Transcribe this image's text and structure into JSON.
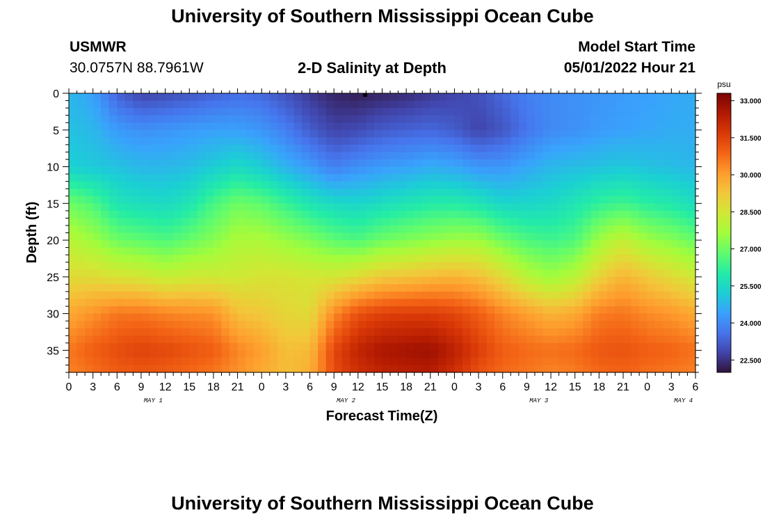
{
  "page": {
    "title": "University of Southern Mississippi Ocean Cube",
    "station": "USMWR",
    "coordinates": "30.0757N  88.7961W",
    "subtitle": "2-D Salinity at Depth",
    "model_start_label": "Model Start Time",
    "model_start_value": "05/01/2022 Hour 21",
    "bottom_title": "University of Southern Mississippi Ocean Cube"
  },
  "chart_data": {
    "type": "heatmap",
    "title": "2-D Salinity at Depth",
    "xlabel": "Forecast Time(Z)",
    "ylabel": "Depth (ft)",
    "x_tick_labels": [
      "0",
      "3",
      "6",
      "9",
      "12",
      "15",
      "18",
      "21",
      "0",
      "3",
      "6",
      "9",
      "12",
      "15",
      "18",
      "21",
      "0",
      "3",
      "6",
      "9",
      "12",
      "15",
      "18",
      "21",
      "0",
      "3",
      "6"
    ],
    "day_labels": [
      {
        "label": "MAY 1",
        "tick_index": 3.5
      },
      {
        "label": "MAY 2",
        "tick_index": 11.5
      },
      {
        "label": "MAY 3",
        "tick_index": 19.5
      },
      {
        "label": "MAY 4",
        "tick_index": 25.5
      }
    ],
    "y_ticks": [
      0,
      5,
      10,
      15,
      20,
      25,
      30,
      35
    ],
    "ylim": [
      0,
      38
    ],
    "y_inverted": true,
    "colorbar": {
      "unit": "psu",
      "ticks": [
        "22.500",
        "24.000",
        "25.500",
        "27.000",
        "28.500",
        "30.000",
        "31.500",
        "33.000"
      ],
      "range": [
        22.0,
        33.3
      ]
    },
    "profile_depths_ft": [
      0,
      5,
      10,
      15,
      20,
      25,
      30,
      35,
      38
    ],
    "profiles": [
      {
        "hour": 0,
        "salinity": [
          24.8,
          25.0,
          25.3,
          27.0,
          28.0,
          28.8,
          29.8,
          30.6,
          30.4
        ]
      },
      {
        "hour": 3,
        "salinity": [
          24.4,
          24.8,
          25.1,
          26.6,
          27.6,
          28.8,
          30.2,
          31.0,
          30.7
        ]
      },
      {
        "hour": 6,
        "salinity": [
          23.3,
          24.3,
          25.0,
          25.8,
          27.0,
          28.6,
          30.6,
          31.3,
          31.0
        ]
      },
      {
        "hour": 9,
        "salinity": [
          22.8,
          24.1,
          24.8,
          25.6,
          26.8,
          28.5,
          30.6,
          31.5,
          31.1
        ]
      },
      {
        "hour": 12,
        "salinity": [
          22.9,
          24.2,
          24.8,
          25.5,
          26.6,
          28.2,
          30.4,
          31.4,
          31.0
        ]
      },
      {
        "hour": 15,
        "salinity": [
          23.1,
          24.3,
          24.9,
          25.8,
          26.9,
          28.4,
          30.3,
          31.2,
          30.8
        ]
      },
      {
        "hour": 18,
        "salinity": [
          23.3,
          24.4,
          25.2,
          26.5,
          27.3,
          28.4,
          30.2,
          31.0,
          30.6
        ]
      },
      {
        "hour": 21,
        "salinity": [
          23.5,
          24.4,
          25.5,
          27.0,
          27.8,
          28.4,
          29.4,
          30.4,
          30.2
        ]
      },
      {
        "hour": 24,
        "salinity": [
          23.4,
          24.2,
          25.2,
          26.8,
          27.8,
          28.6,
          29.2,
          30.0,
          29.8
        ]
      },
      {
        "hour": 27,
        "salinity": [
          23.0,
          23.8,
          24.7,
          26.3,
          27.5,
          28.6,
          28.9,
          29.4,
          29.4
        ]
      },
      {
        "hour": 30,
        "salinity": [
          22.6,
          23.2,
          24.3,
          25.8,
          27.2,
          28.5,
          28.8,
          29.5,
          29.7
        ]
      },
      {
        "hour": 33,
        "salinity": [
          22.3,
          22.8,
          23.8,
          25.5,
          26.8,
          28.5,
          30.3,
          31.4,
          31.3
        ]
      },
      {
        "hour": 36,
        "salinity": [
          22.2,
          22.9,
          24.1,
          25.4,
          26.6,
          28.8,
          31.2,
          32.2,
          31.9
        ]
      },
      {
        "hour": 39,
        "salinity": [
          22.3,
          23.2,
          24.3,
          25.6,
          27.0,
          29.2,
          31.5,
          32.6,
          32.2
        ]
      },
      {
        "hour": 42,
        "salinity": [
          22.4,
          23.3,
          24.4,
          25.8,
          27.2,
          29.3,
          31.6,
          32.7,
          32.3
        ]
      },
      {
        "hour": 45,
        "salinity": [
          22.6,
          23.4,
          24.6,
          26.0,
          27.4,
          29.5,
          31.6,
          32.8,
          32.4
        ]
      },
      {
        "hour": 48,
        "salinity": [
          22.8,
          23.2,
          24.5,
          26.0,
          27.6,
          29.6,
          31.4,
          32.3,
          31.9
        ]
      },
      {
        "hour": 51,
        "salinity": [
          23.0,
          22.8,
          24.2,
          25.8,
          27.6,
          29.4,
          31.0,
          31.6,
          31.2
        ]
      },
      {
        "hour": 54,
        "salinity": [
          23.4,
          23.1,
          24.2,
          25.4,
          27.0,
          28.8,
          30.4,
          31.0,
          30.8
        ]
      },
      {
        "hour": 57,
        "salinity": [
          23.8,
          23.6,
          24.5,
          25.4,
          26.6,
          28.0,
          30.0,
          30.8,
          30.6
        ]
      },
      {
        "hour": 60,
        "salinity": [
          24.0,
          24.0,
          24.8,
          25.5,
          26.4,
          27.6,
          29.6,
          30.7,
          30.4
        ]
      },
      {
        "hour": 63,
        "salinity": [
          24.1,
          24.1,
          24.9,
          25.8,
          26.6,
          28.0,
          29.8,
          30.8,
          30.5
        ]
      },
      {
        "hour": 66,
        "salinity": [
          24.2,
          24.3,
          25.0,
          26.2,
          27.6,
          29.0,
          30.5,
          31.1,
          30.8
        ]
      },
      {
        "hour": 69,
        "salinity": [
          24.3,
          24.4,
          25.1,
          26.4,
          28.2,
          29.6,
          30.6,
          31.2,
          30.9
        ]
      },
      {
        "hour": 72,
        "salinity": [
          24.4,
          24.5,
          25.0,
          26.1,
          27.6,
          29.2,
          30.3,
          31.0,
          30.7
        ]
      },
      {
        "hour": 75,
        "salinity": [
          24.5,
          24.6,
          24.9,
          25.9,
          27.3,
          28.8,
          30.1,
          30.9,
          30.6
        ]
      },
      {
        "hour": 78,
        "salinity": [
          24.6,
          24.6,
          24.8,
          25.6,
          26.9,
          28.4,
          29.8,
          30.7,
          30.4
        ]
      }
    ]
  },
  "colors": {
    "colormap": [
      "#30123b",
      "#4145ab",
      "#4675ed",
      "#39a2fc",
      "#1bcfd4",
      "#24eca6",
      "#61fc6c",
      "#a4fc3b",
      "#d1e834",
      "#f3c63a",
      "#fe9b2d",
      "#f36315",
      "#d93807",
      "#b11901",
      "#7a0403"
    ]
  }
}
